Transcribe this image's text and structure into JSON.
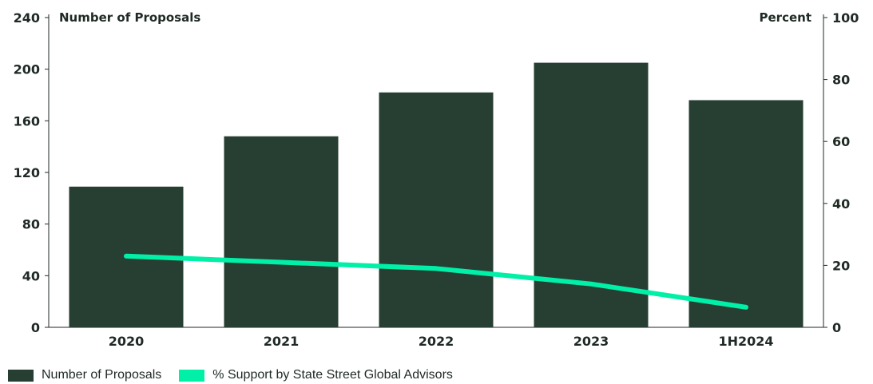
{
  "chart_data": {
    "type": "bar+line",
    "categories": [
      "2020",
      "2021",
      "2022",
      "2023",
      "1H2024"
    ],
    "series": [
      {
        "name": "Number of Proposals",
        "type": "bar",
        "axis": "left",
        "values": [
          109,
          148,
          182,
          205,
          176
        ]
      },
      {
        "name": "% Support by State Street Global Advisors",
        "type": "line",
        "axis": "right",
        "values": [
          23,
          21,
          19,
          14,
          6.5
        ]
      }
    ],
    "left_axis": {
      "title": "Number of Proposals",
      "ylim": [
        0,
        240
      ],
      "ticks": [
        "0",
        "40",
        "80",
        "120",
        "160",
        "200",
        "240"
      ]
    },
    "right_axis": {
      "title": "Percent",
      "ylim": [
        0,
        100
      ],
      "ticks": [
        "0",
        "20",
        "40",
        "60",
        "80",
        "100"
      ]
    },
    "grid": false,
    "legend_position": "bottom-left"
  },
  "colors": {
    "bar": "#273e32",
    "line": "#00f0a8",
    "text": "#1f2a24",
    "axis": "#1f2a24"
  }
}
